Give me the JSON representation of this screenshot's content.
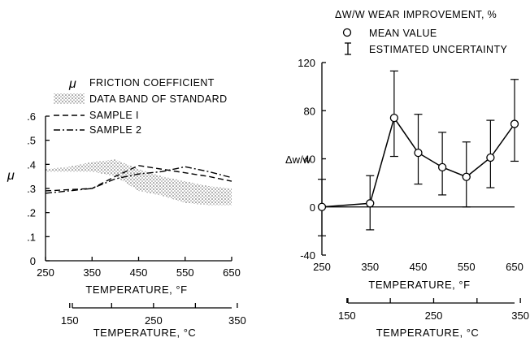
{
  "chart_data": [
    {
      "type": "line",
      "ylabel": "μ",
      "xlabel": "TEMPERATURE, °F",
      "xlabel_secondary": "TEMPERATURE, °C",
      "xlim": [
        250,
        650
      ],
      "ylim": [
        0,
        0.6
      ],
      "x_ticks": [
        "250",
        "350",
        "450",
        "550",
        "650"
      ],
      "y_ticks": [
        "0",
        ".1",
        ".2",
        ".3",
        ".4",
        ".5",
        ".6"
      ],
      "secondary_x_ticks": [
        {
          "value": 150,
          "label": "150"
        },
        {
          "value": 250,
          "label": "250"
        },
        {
          "value": 350,
          "label": "350"
        }
      ],
      "secondary_x_minor_ticks": [
        200,
        300
      ],
      "legend": {
        "title_symbol": "μ",
        "title": "FRICTION COEFFICIENT",
        "entries": [
          "DATA BAND OF STANDARD",
          "SAMPLE I",
          "SAMPLE 2"
        ],
        "placement": "top"
      },
      "band": {
        "name": "DATA BAND OF STANDARD",
        "x": [
          250,
          300,
          350,
          400,
          450,
          500,
          550,
          600,
          650
        ],
        "upper": [
          0.38,
          0.39,
          0.41,
          0.42,
          0.38,
          0.35,
          0.33,
          0.31,
          0.3
        ],
        "lower": [
          0.37,
          0.37,
          0.37,
          0.35,
          0.29,
          0.27,
          0.24,
          0.23,
          0.23
        ]
      },
      "series": [
        {
          "name": "SAMPLE I",
          "style": "dashed",
          "x": [
            250,
            300,
            350,
            400,
            450,
            500,
            550,
            600,
            650
          ],
          "y": [
            0.29,
            0.295,
            0.3,
            0.35,
            0.395,
            0.38,
            0.365,
            0.35,
            0.33
          ]
        },
        {
          "name": "SAMPLE 2",
          "style": "dash-dot",
          "x": [
            250,
            300,
            350,
            400,
            450,
            500,
            550,
            600,
            650
          ],
          "y": [
            0.28,
            0.29,
            0.3,
            0.34,
            0.36,
            0.37,
            0.39,
            0.37,
            0.345
          ]
        }
      ]
    },
    {
      "type": "line",
      "ylabel": "Δw/w",
      "xlabel": "TEMPERATURE, °F",
      "xlabel_secondary": "TEMPERATURE, °C",
      "xlim": [
        250,
        650
      ],
      "ylim": [
        -40,
        120
      ],
      "x_ticks": [
        "250",
        "350",
        "450",
        "550",
        "650"
      ],
      "y_ticks": [
        "-40",
        "0",
        "40",
        "80",
        "120"
      ],
      "secondary_x_ticks": [
        {
          "value": 150,
          "label": "150"
        },
        {
          "value": 250,
          "label": "250"
        },
        {
          "value": 350,
          "label": "350"
        }
      ],
      "secondary_x_minor_ticks": [
        200,
        300
      ],
      "legend": {
        "title": "ΔW/W WEAR IMPROVEMENT, %",
        "entries": [
          "MEAN VALUE",
          "ESTIMATED UNCERTAINTY"
        ],
        "placement": "top"
      },
      "series": [
        {
          "name": "MEAN VALUE",
          "x": [
            250,
            350,
            400,
            450,
            500,
            550,
            600,
            650
          ],
          "y": [
            0,
            3,
            74,
            45,
            33,
            25,
            41,
            69
          ],
          "err_low": [
            -24,
            -19,
            42,
            19,
            10,
            0,
            16,
            38
          ],
          "err_high": [
            23,
            26,
            113,
            77,
            62,
            54,
            72,
            106
          ]
        }
      ],
      "zero_line": 0
    }
  ]
}
